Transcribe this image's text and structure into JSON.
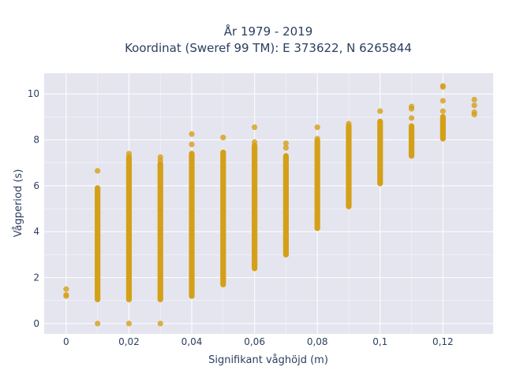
{
  "chart_data": {
    "type": "scatter",
    "title_line1": "År 1979 - 2019",
    "title_line2": "Koordinat (Sweref 99 TM): E 373622, N 6265844",
    "xlabel": "Signifikant våghöjd (m)",
    "ylabel": "Vågperiod (s)",
    "xlim": [
      -0.007,
      0.136
    ],
    "ylim": [
      -0.45,
      10.9
    ],
    "grid": true,
    "x_ticks": [
      {
        "value": 0,
        "label": "0"
      },
      {
        "value": 0.02,
        "label": "0,02"
      },
      {
        "value": 0.04,
        "label": "0,04"
      },
      {
        "value": 0.06,
        "label": "0,06"
      },
      {
        "value": 0.08,
        "label": "0,08"
      },
      {
        "value": 0.1,
        "label": "0,1"
      },
      {
        "value": 0.12,
        "label": "0,12"
      }
    ],
    "y_ticks": [
      {
        "value": 0,
        "label": "0"
      },
      {
        "value": 2,
        "label": "2"
      },
      {
        "value": 4,
        "label": "4"
      },
      {
        "value": 6,
        "label": "6"
      },
      {
        "value": 8,
        "label": "8"
      },
      {
        "value": 10,
        "label": "10"
      }
    ],
    "colors": {
      "plot_bg": "#e5e5f0",
      "grid": "#ffffff",
      "marker": "#d4a017",
      "text": "#2a3f5f"
    },
    "ranges": [
      {
        "x": 0.01,
        "ymin": 1.05,
        "ymax": 5.9
      },
      {
        "x": 0.02,
        "ymin": 1.05,
        "ymax": 7.25
      },
      {
        "x": 0.03,
        "ymin": 1.05,
        "ymax": 6.95
      },
      {
        "x": 0.04,
        "ymin": 1.2,
        "ymax": 7.4
      },
      {
        "x": 0.05,
        "ymin": 1.7,
        "ymax": 7.45
      },
      {
        "x": 0.06,
        "ymin": 2.4,
        "ymax": 7.75
      },
      {
        "x": 0.07,
        "ymin": 3.0,
        "ymax": 7.3
      },
      {
        "x": 0.08,
        "ymin": 4.15,
        "ymax": 7.95
      },
      {
        "x": 0.09,
        "ymin": 5.1,
        "ymax": 8.6
      },
      {
        "x": 0.1,
        "ymin": 6.1,
        "ymax": 8.8
      },
      {
        "x": 0.11,
        "ymin": 7.3,
        "ymax": 8.6
      },
      {
        "x": 0.12,
        "ymin": 8.05,
        "ymax": 9.0
      }
    ],
    "points": [
      {
        "x": 0,
        "y": 1.2
      },
      {
        "x": 0,
        "y": 1.25
      },
      {
        "x": 0,
        "y": 1.5
      },
      {
        "x": 0.01,
        "y": 0
      },
      {
        "x": 0.01,
        "y": 6.65
      },
      {
        "x": 0.02,
        "y": 0
      },
      {
        "x": 0.02,
        "y": 7.4
      },
      {
        "x": 0.03,
        "y": 0
      },
      {
        "x": 0.03,
        "y": 7.1
      },
      {
        "x": 0.03,
        "y": 7.25
      },
      {
        "x": 0.04,
        "y": 7.8
      },
      {
        "x": 0.04,
        "y": 8.25
      },
      {
        "x": 0.05,
        "y": 8.1
      },
      {
        "x": 0.06,
        "y": 7.9
      },
      {
        "x": 0.06,
        "y": 8.55
      },
      {
        "x": 0.07,
        "y": 7.65
      },
      {
        "x": 0.07,
        "y": 7.85
      },
      {
        "x": 0.08,
        "y": 8.05
      },
      {
        "x": 0.08,
        "y": 8.55
      },
      {
        "x": 0.09,
        "y": 8.7
      },
      {
        "x": 0.1,
        "y": 9.25
      },
      {
        "x": 0.11,
        "y": 8.95
      },
      {
        "x": 0.11,
        "y": 9.35
      },
      {
        "x": 0.11,
        "y": 9.45
      },
      {
        "x": 0.12,
        "y": 9.25
      },
      {
        "x": 0.12,
        "y": 9.7
      },
      {
        "x": 0.12,
        "y": 10.3
      },
      {
        "x": 0.12,
        "y": 10.35
      },
      {
        "x": 0.13,
        "y": 9.1
      },
      {
        "x": 0.13,
        "y": 9.2
      },
      {
        "x": 0.13,
        "y": 9.5
      },
      {
        "x": 0.13,
        "y": 9.75
      }
    ]
  }
}
